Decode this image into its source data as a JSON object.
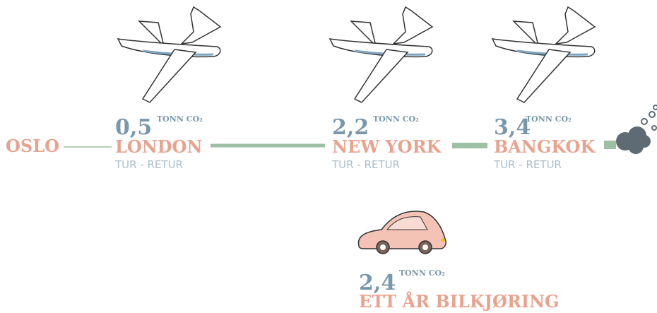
{
  "origin": "OSLO",
  "trips": [
    {
      "value": "0,5",
      "unit": "TONN CO₂",
      "destination": "LONDON",
      "note": "TUR - RETUR"
    },
    {
      "value": "2,2",
      "unit": "TONN CO₂",
      "destination": "NEW YORK",
      "note": "TUR - RETUR"
    },
    {
      "value": "3,4",
      "unit": "TONN CO₂",
      "destination": "BANGKOK",
      "note": "TUR - RETUR"
    }
  ],
  "car": {
    "value": "2,4",
    "unit": "TONN CO₂",
    "label": "ETT ÅR BILKJØRING"
  }
}
